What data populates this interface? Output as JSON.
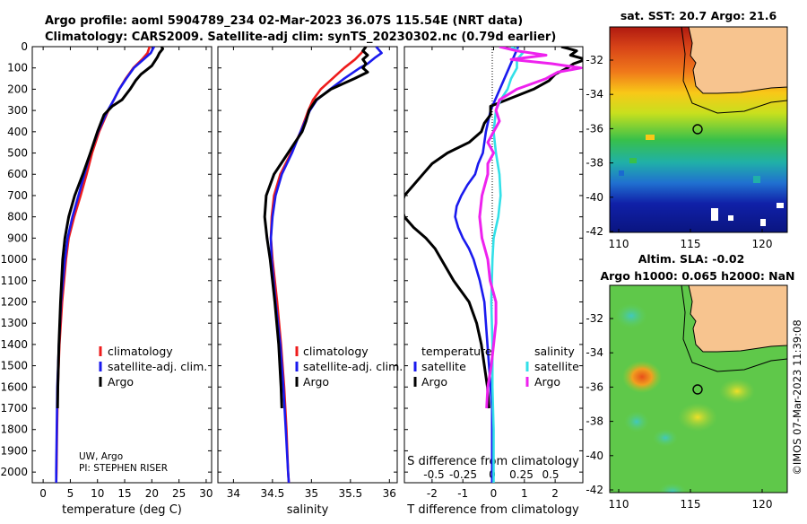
{
  "header": {
    "line1": "Argo profile: aoml 5904789_234 02-Mar-2023 36.07S 115.54E (NRT data)",
    "line2": "Climatology: CARS2009. Satellite-adj clim: synTS_20230302.nc (0.79d earlier)"
  },
  "colors": {
    "climatology": "#ee1c1c",
    "satellite": "#1a1aee",
    "argo": "#000000",
    "sat_salinity": "#33e0e8",
    "argo_salinity": "#ee22ee"
  },
  "depth_ticks": [
    "0",
    "100",
    "200",
    "300",
    "400",
    "500",
    "600",
    "700",
    "800",
    "900",
    "1000",
    "1100",
    "1200",
    "1300",
    "1400",
    "1500",
    "1600",
    "1700",
    "1800",
    "1900",
    "2000"
  ],
  "chart_data": [
    {
      "type": "line",
      "name": "temperature",
      "xlabel": "temperature (deg C)",
      "ylabel": "depth",
      "xlim": [
        -2,
        31
      ],
      "ylim": [
        2050,
        0
      ],
      "xticks": [
        "0",
        "5",
        "10",
        "15",
        "20",
        "25",
        "30"
      ],
      "legend": [
        "climatology",
        "satellite-adj. clim.",
        "Argo"
      ],
      "annotation": [
        "UW, Argo",
        "PI: STEPHEN RISER"
      ],
      "series": [
        {
          "name": "climatology",
          "depth": [
            0,
            30,
            60,
            100,
            150,
            200,
            250,
            300,
            400,
            500,
            600,
            700,
            800,
            900,
            1000,
            1200,
            1400,
            1600,
            1800,
            2000,
            2050
          ],
          "values": [
            19.6,
            19.2,
            18.2,
            16.6,
            15.2,
            14.0,
            13.0,
            12.0,
            10.3,
            9.0,
            8.0,
            6.9,
            5.7,
            4.7,
            4.2,
            3.5,
            3.0,
            2.7,
            2.55,
            2.45,
            2.4
          ]
        },
        {
          "name": "satellite-adj. clim.",
          "depth": [
            0,
            30,
            60,
            100,
            150,
            200,
            250,
            300,
            400,
            500,
            600,
            700,
            800,
            900,
            1000,
            1200,
            1400,
            1600,
            1800,
            2000,
            2050
          ],
          "values": [
            20.4,
            19.8,
            18.5,
            16.7,
            15.3,
            14.0,
            13.0,
            11.9,
            10.1,
            8.7,
            7.6,
            6.5,
            5.4,
            4.5,
            4.0,
            3.3,
            2.9,
            2.6,
            2.5,
            2.4,
            2.4
          ]
        },
        {
          "name": "Argo",
          "depth": [
            0,
            10,
            30,
            50,
            70,
            90,
            110,
            130,
            160,
            200,
            250,
            280,
            320,
            400,
            500,
            600,
            700,
            800,
            900,
            1000,
            1200,
            1400,
            1600,
            1700
          ],
          "values": [
            21.8,
            22.0,
            21.4,
            21.0,
            20.5,
            20.0,
            19.0,
            18.0,
            17.0,
            16.0,
            14.5,
            12.7,
            11.2,
            10.0,
            8.7,
            7.3,
            5.8,
            4.7,
            4.0,
            3.6,
            3.2,
            2.9,
            2.7,
            2.65
          ]
        }
      ]
    },
    {
      "type": "line",
      "name": "salinity",
      "xlabel": "salinity",
      "ylabel": "depth",
      "xlim": [
        33.8,
        36.1
      ],
      "ylim": [
        2050,
        0
      ],
      "xticks": [
        "34",
        "34.5",
        "35",
        "35.5",
        "36"
      ],
      "legend": [
        "climatology",
        "satellite-adj. clim.",
        "Argo"
      ],
      "series": [
        {
          "name": "climatology",
          "depth": [
            0,
            30,
            60,
            100,
            150,
            200,
            250,
            300,
            400,
            500,
            600,
            700,
            800,
            900,
            1000,
            1200,
            1400,
            1600,
            1800,
            2000,
            2050
          ],
          "values": [
            35.7,
            35.64,
            35.56,
            35.42,
            35.27,
            35.12,
            35.02,
            34.96,
            34.86,
            34.74,
            34.6,
            34.52,
            34.49,
            34.48,
            34.5,
            34.56,
            34.61,
            34.65,
            34.68,
            34.7,
            34.71
          ]
        },
        {
          "name": "satellite-adj. clim.",
          "depth": [
            0,
            30,
            50,
            80,
            100,
            150,
            200,
            250,
            300,
            400,
            500,
            600,
            700,
            800,
            900,
            1000,
            1200,
            1400,
            1600,
            1800,
            2000,
            2050
          ],
          "values": [
            35.83,
            35.9,
            35.82,
            35.72,
            35.62,
            35.42,
            35.24,
            35.07,
            34.98,
            34.86,
            34.75,
            34.62,
            34.54,
            34.5,
            34.48,
            34.49,
            34.54,
            34.6,
            34.64,
            34.67,
            34.7,
            34.71
          ]
        },
        {
          "name": "Argo",
          "depth": [
            0,
            20,
            40,
            60,
            80,
            100,
            120,
            150,
            200,
            250,
            300,
            350,
            400,
            500,
            600,
            700,
            800,
            900,
            1000,
            1200,
            1400,
            1600,
            1700
          ],
          "values": [
            35.7,
            35.66,
            35.72,
            35.66,
            35.7,
            35.66,
            35.72,
            35.55,
            35.25,
            35.06,
            34.97,
            34.93,
            34.88,
            34.7,
            34.52,
            34.42,
            34.4,
            34.43,
            34.47,
            34.53,
            34.58,
            34.61,
            34.62
          ]
        }
      ]
    },
    {
      "type": "line",
      "name": "differences",
      "xlabel": "T difference from climatology",
      "xlabel_top": "S difference from climatology",
      "xlim": [
        -2.9,
        2.9
      ],
      "ylim": [
        2050,
        0
      ],
      "xticks": [
        "-2",
        "-1",
        "0",
        "1",
        "2"
      ],
      "sticks": [
        "-0.5",
        "-0.25",
        "0",
        "0.25",
        "0.5"
      ],
      "legend": {
        "t_header": "temperature",
        "s_header": "salinity",
        "t_items": [
          "satellite",
          "Argo"
        ],
        "s_items": [
          "satellite",
          "Argo"
        ]
      },
      "series": [
        {
          "name": "T satellite",
          "depth": [
            0,
            100,
            200,
            300,
            400,
            500,
            550,
            600,
            650,
            700,
            750,
            800,
            850,
            900,
            950,
            1000,
            1100,
            1200,
            1300,
            1400,
            1500,
            1600,
            1700,
            1800,
            2000,
            2050
          ],
          "values": [
            0.8,
            0.5,
            0.2,
            -0.1,
            -0.25,
            -0.35,
            -0.5,
            -0.6,
            -0.85,
            -1.05,
            -1.2,
            -1.25,
            -1.15,
            -1.0,
            -0.8,
            -0.65,
            -0.45,
            -0.3,
            -0.25,
            -0.2,
            -0.15,
            -0.1,
            -0.05,
            -0.05,
            -0.05,
            -0.05
          ]
        },
        {
          "name": "T Argo",
          "depth": [
            0,
            20,
            40,
            60,
            80,
            100,
            130,
            160,
            200,
            240,
            280,
            320,
            360,
            400,
            450,
            500,
            550,
            600,
            650,
            700,
            750,
            800,
            850,
            900,
            950,
            1000,
            1100,
            1200,
            1300,
            1400,
            1500,
            1600,
            1700
          ],
          "values": [
            2.2,
            2.7,
            2.5,
            3.0,
            2.6,
            2.4,
            2.0,
            1.8,
            1.3,
            0.6,
            -0.1,
            -0.1,
            -0.3,
            -0.4,
            -0.8,
            -1.5,
            -2.0,
            -2.3,
            -2.6,
            -2.9,
            -3.0,
            -2.9,
            -2.6,
            -2.2,
            -1.9,
            -1.7,
            -1.3,
            -0.8,
            -0.55,
            -0.4,
            -0.3,
            -0.2,
            -0.15
          ]
        },
        {
          "name": "S satellite",
          "depth": [
            0,
            30,
            60,
            100,
            150,
            200,
            250,
            300,
            400,
            500,
            600,
            700,
            800,
            900,
            1000,
            1200,
            1400,
            1600,
            1800,
            2000,
            2050
          ],
          "values": [
            0.15,
            0.25,
            0.2,
            0.2,
            0.15,
            0.12,
            0.06,
            0.02,
            0.0,
            0.02,
            0.05,
            0.06,
            0.04,
            0.0,
            -0.01,
            -0.02,
            -0.01,
            -0.01,
            0.0,
            0.0,
            0.0
          ]
        },
        {
          "name": "S Argo",
          "depth": [
            0,
            20,
            40,
            60,
            80,
            100,
            120,
            150,
            200,
            250,
            300,
            350,
            400,
            450,
            500,
            550,
            600,
            700,
            800,
            900,
            1000,
            1100,
            1200,
            1300,
            1400,
            1500,
            1600,
            1700
          ],
          "values": [
            0.05,
            0.2,
            0.45,
            0.15,
            0.5,
            0.75,
            0.55,
            0.45,
            0.2,
            0.05,
            0.02,
            0.05,
            0.0,
            -0.05,
            0.0,
            -0.05,
            -0.05,
            -0.1,
            -0.12,
            -0.1,
            -0.05,
            -0.03,
            0.02,
            0.02,
            0.0,
            -0.02,
            -0.05,
            -0.06
          ]
        }
      ]
    }
  ],
  "maps": {
    "sst_title": "sat. SST: 20.7 Argo: 21.6",
    "sla_title1": "Altim. SLA: -0.02",
    "sla_title2": "Argo h1000: 0.065 h2000: NaN",
    "lat_ticks": [
      "-32",
      "-34",
      "-36",
      "-38",
      "-40",
      "-42"
    ],
    "lon_ticks": [
      "110",
      "115",
      "120"
    ],
    "timestamp": "©IMOS 07-Mar-2023 11:39:08"
  }
}
